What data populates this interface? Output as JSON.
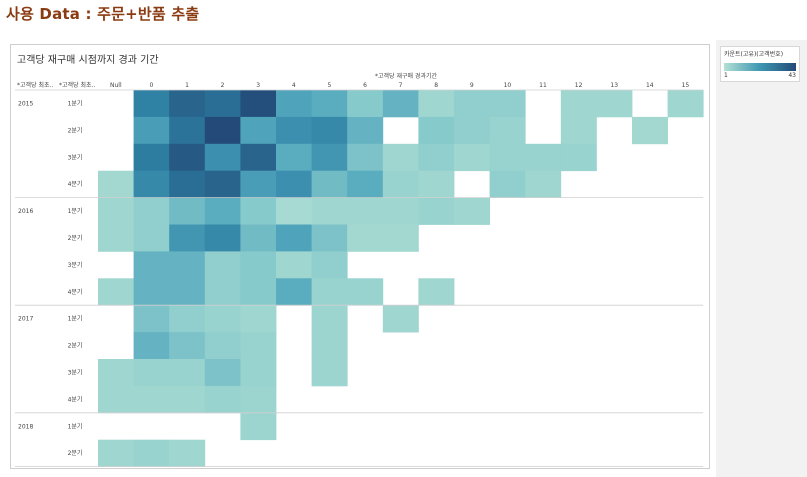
{
  "page": {
    "title": "사용 Data : 주문+반품 추출"
  },
  "legend": {
    "title": "카운트(고유)(고객번호)",
    "min_label": "1",
    "max_label": "43",
    "min": 1,
    "max": 43,
    "color_low": "#b3e0d4",
    "color_high": "#234a78"
  },
  "chart_data": {
    "type": "heatmap",
    "title": "고객당 재구매 시점까지 경과 기간",
    "x_header": "*고객당 재구매 경과기간",
    "row_header_1": "*고객당 최초..",
    "row_header_2": "*고객당 최초..",
    "x_categories": [
      "Null",
      "0",
      "1",
      "2",
      "3",
      "4",
      "5",
      "6",
      "7",
      "8",
      "9",
      "10",
      "11",
      "12",
      "13",
      "14",
      "15"
    ],
    "rows": [
      {
        "year": "2015",
        "quarter": "1분기",
        "values": [
          null,
          32,
          38,
          36,
          42,
          22,
          20,
          12,
          18,
          6,
          10,
          10,
          null,
          6,
          6,
          null,
          6
        ]
      },
      {
        "year": "",
        "quarter": "2분기",
        "values": [
          null,
          24,
          35,
          43,
          22,
          28,
          30,
          18,
          null,
          12,
          10,
          8,
          null,
          6,
          null,
          5,
          null
        ]
      },
      {
        "year": "",
        "quarter": "3분기",
        "values": [
          null,
          33,
          40,
          28,
          38,
          20,
          26,
          14,
          6,
          10,
          6,
          8,
          8,
          8,
          null,
          null,
          null
        ]
      },
      {
        "year": "",
        "quarter": "4분기",
        "values": [
          5,
          30,
          36,
          38,
          24,
          28,
          16,
          20,
          8,
          6,
          null,
          10,
          6,
          null,
          null,
          null,
          null
        ]
      },
      {
        "year": "2016",
        "quarter": "1분기",
        "values": [
          6,
          10,
          16,
          20,
          12,
          4,
          6,
          6,
          6,
          8,
          6,
          null,
          null,
          null,
          null,
          null,
          null
        ]
      },
      {
        "year": "",
        "quarter": "2분기",
        "values": [
          6,
          10,
          26,
          30,
          16,
          22,
          14,
          5,
          5,
          null,
          null,
          null,
          null,
          null,
          null,
          null,
          null
        ]
      },
      {
        "year": "",
        "quarter": "3분기",
        "values": [
          null,
          18,
          18,
          10,
          12,
          6,
          10,
          null,
          null,
          null,
          null,
          null,
          null,
          null,
          null,
          null,
          null
        ]
      },
      {
        "year": "",
        "quarter": "4분기",
        "values": [
          6,
          18,
          18,
          10,
          12,
          20,
          8,
          8,
          null,
          6,
          null,
          null,
          null,
          null,
          null,
          null,
          null
        ]
      },
      {
        "year": "2017",
        "quarter": "1분기",
        "values": [
          null,
          14,
          10,
          8,
          6,
          null,
          7,
          null,
          6,
          null,
          null,
          null,
          null,
          null,
          null,
          null,
          null
        ]
      },
      {
        "year": "",
        "quarter": "2분기",
        "values": [
          null,
          18,
          14,
          10,
          8,
          null,
          7,
          null,
          null,
          null,
          null,
          null,
          null,
          null,
          null,
          null,
          null
        ]
      },
      {
        "year": "",
        "quarter": "3분기",
        "values": [
          6,
          8,
          8,
          14,
          8,
          null,
          7,
          null,
          null,
          null,
          null,
          null,
          null,
          null,
          null,
          null,
          null
        ]
      },
      {
        "year": "",
        "quarter": "4분기",
        "values": [
          6,
          6,
          6,
          8,
          7,
          null,
          null,
          null,
          null,
          null,
          null,
          null,
          null,
          null,
          null,
          null,
          null
        ]
      },
      {
        "year": "2018",
        "quarter": "1분기",
        "values": [
          null,
          null,
          null,
          null,
          7,
          null,
          null,
          null,
          null,
          null,
          null,
          null,
          null,
          null,
          null,
          null,
          null
        ]
      },
      {
        "year": "",
        "quarter": "2분기",
        "values": [
          6,
          8,
          6,
          null,
          null,
          null,
          null,
          null,
          null,
          null,
          null,
          null,
          null,
          null,
          null,
          null,
          null
        ]
      }
    ],
    "year_groups": [
      "2015",
      "2016",
      "2017",
      "2018"
    ],
    "color_range": [
      1,
      43
    ],
    "grid": false
  }
}
